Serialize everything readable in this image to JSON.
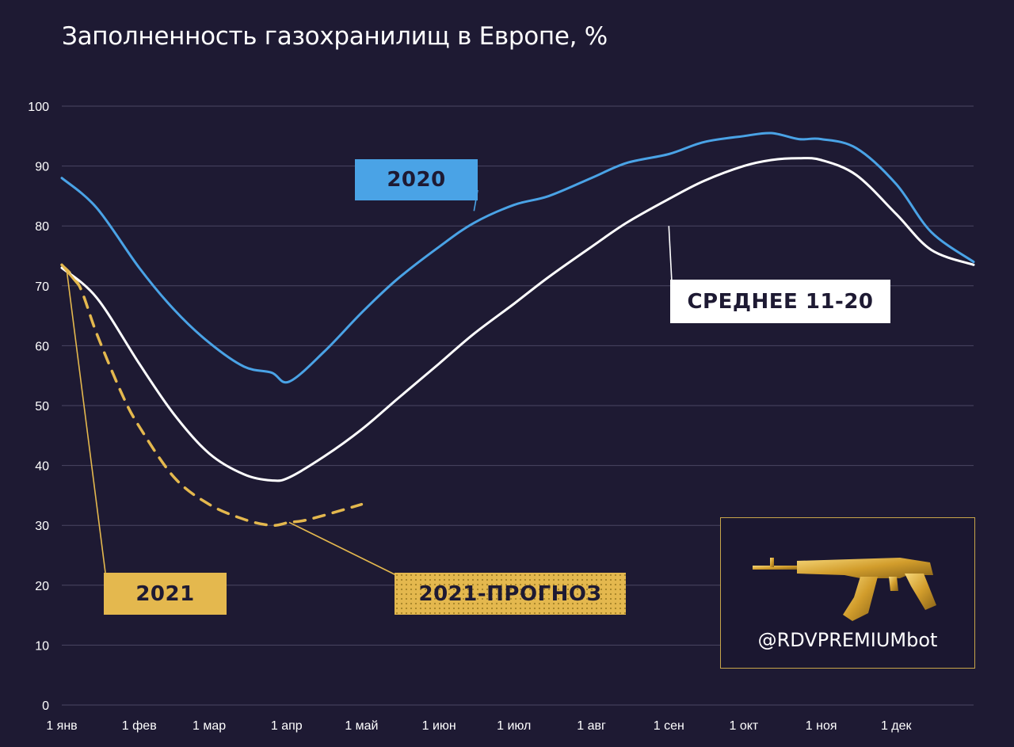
{
  "title": "Заполненность газохранилищ в Европе, %",
  "labels": {
    "s2020": "2020",
    "avg": "СРЕДНЕЕ 11-20",
    "s2021": "2021",
    "forecast": "2021-ПРОГНОЗ"
  },
  "promo": {
    "handle": "@RDVPREMIUMbot",
    "icon": "rifle-icon"
  },
  "colors": {
    "background": "#1e1a33",
    "s2020": "#4aa3e6",
    "avg": "#ffffff",
    "s2021": "#e4b84e",
    "grid": "#4a4663"
  },
  "chart_data": {
    "type": "line",
    "title": "Заполненность газохранилищ в Европе, %",
    "x_ticks": [
      "1 янв",
      "1 фев",
      "1 мар",
      "1 апр",
      "1 май",
      "1 июн",
      "1 июл",
      "1 авг",
      "1 сен",
      "1 окт",
      "1 ноя",
      "1 дек"
    ],
    "y_ticks": [
      "0",
      "10",
      "20",
      "30",
      "40",
      "50",
      "60",
      "70",
      "80",
      "90",
      "100"
    ],
    "ylim": [
      0,
      100
    ],
    "x_unit": "day of year",
    "xlim": [
      1,
      366
    ],
    "grid": true,
    "series": [
      {
        "name": "2020",
        "style": "solid",
        "x": [
          1,
          15,
          32,
          46,
          60,
          74,
          85,
          92,
          106,
          121,
          135,
          152,
          166,
          182,
          196,
          213,
          227,
          244,
          258,
          274,
          285,
          296,
          305,
          319,
          335,
          349,
          366
        ],
        "y": [
          88,
          83,
          73,
          66,
          60.5,
          56.5,
          55.5,
          54,
          59,
          65.5,
          71,
          76.5,
          80.5,
          83.5,
          85,
          88,
          90.5,
          92,
          94,
          95,
          95.5,
          94.5,
          94.5,
          93,
          87,
          79,
          74
        ]
      },
      {
        "name": "СРЕДНЕЕ 11-20",
        "style": "solid",
        "x": [
          1,
          15,
          32,
          46,
          60,
          74,
          85,
          92,
          106,
          121,
          135,
          152,
          166,
          182,
          196,
          213,
          227,
          244,
          258,
          274,
          285,
          296,
          305,
          319,
          335,
          349,
          366
        ],
        "y": [
          73,
          68,
          57,
          48.5,
          42,
          38.5,
          37.5,
          38,
          41.5,
          46,
          51,
          57,
          62,
          67,
          71.5,
          76.5,
          80.5,
          84.5,
          87.5,
          90,
          91,
          91.3,
          91,
          88.5,
          82,
          76,
          73.5
        ]
      },
      {
        "name": "2021",
        "style": "solid",
        "x": [
          1,
          8
        ],
        "y": [
          73.5,
          70
        ]
      },
      {
        "name": "2021-ПРОГНОЗ",
        "style": "dashed",
        "x": [
          1,
          8,
          15,
          25,
          32,
          46,
          60,
          74,
          85,
          92,
          100,
          121
        ],
        "y": [
          73.5,
          70,
          62,
          52,
          46.5,
          38,
          33.5,
          31,
          30,
          30.5,
          31,
          33.5
        ]
      }
    ]
  }
}
